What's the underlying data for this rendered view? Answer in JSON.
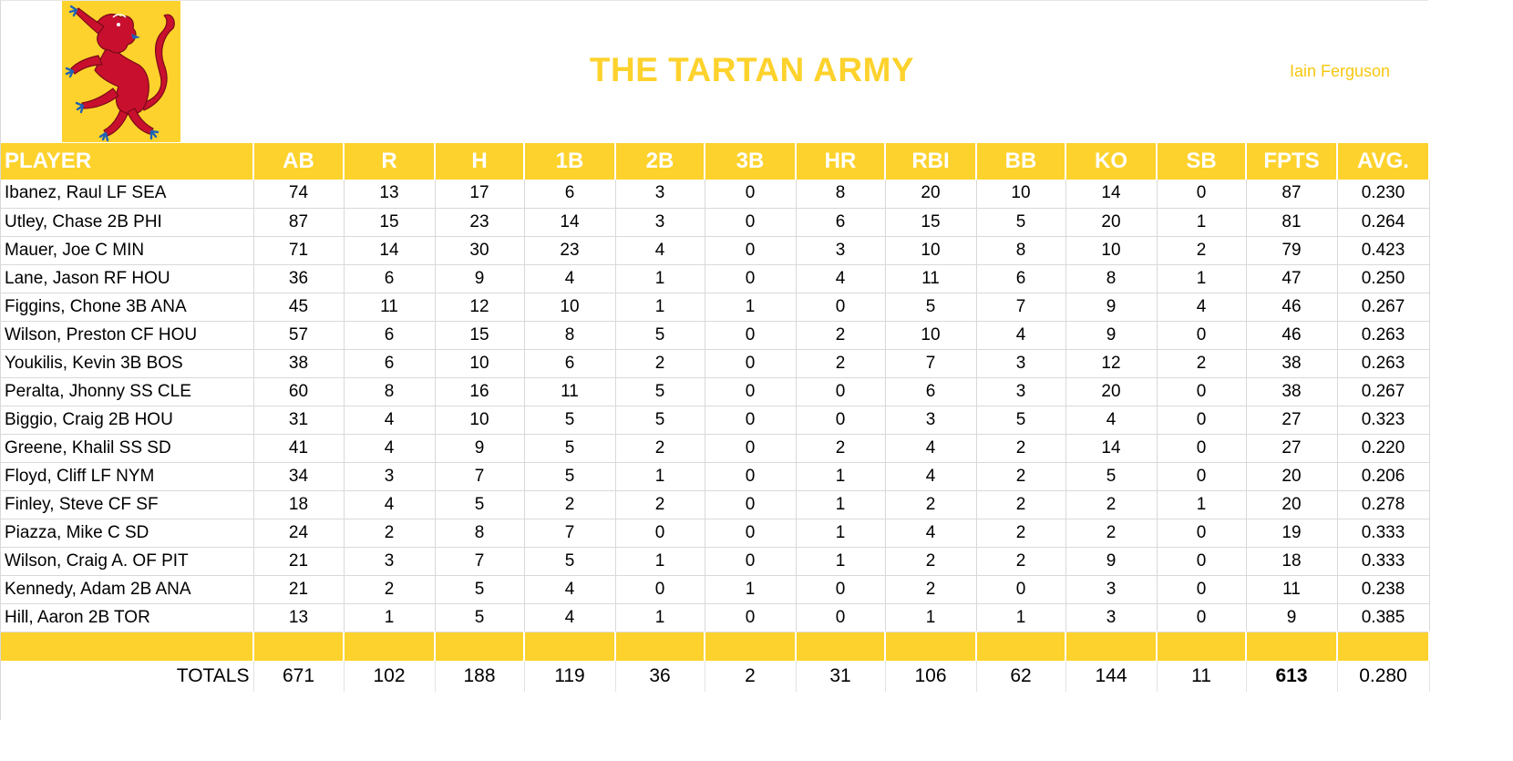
{
  "team": {
    "title": "THE TARTAN ARMY",
    "owner": "Iain Ferguson",
    "logo_icon": "rampant-lion-icon",
    "colors": {
      "accent": "#fdd22c",
      "lion": "#c8102e",
      "claws": "#1f63b5"
    }
  },
  "table": {
    "headers": [
      "PLAYER",
      "AB",
      "R",
      "H",
      "1B",
      "2B",
      "3B",
      "HR",
      "RBI",
      "BB",
      "KO",
      "SB",
      "FPTS",
      "AVG."
    ],
    "rows": [
      [
        "Ibanez, Raul LF SEA",
        "74",
        "13",
        "17",
        "6",
        "3",
        "0",
        "8",
        "20",
        "10",
        "14",
        "0",
        "87",
        "0.230"
      ],
      [
        "Utley, Chase 2B PHI",
        "87",
        "15",
        "23",
        "14",
        "3",
        "0",
        "6",
        "15",
        "5",
        "20",
        "1",
        "81",
        "0.264"
      ],
      [
        "Mauer, Joe C MIN",
        "71",
        "14",
        "30",
        "23",
        "4",
        "0",
        "3",
        "10",
        "8",
        "10",
        "2",
        "79",
        "0.423"
      ],
      [
        "Lane, Jason RF HOU",
        "36",
        "6",
        "9",
        "4",
        "1",
        "0",
        "4",
        "11",
        "6",
        "8",
        "1",
        "47",
        "0.250"
      ],
      [
        "Figgins, Chone 3B ANA",
        "45",
        "11",
        "12",
        "10",
        "1",
        "1",
        "0",
        "5",
        "7",
        "9",
        "4",
        "46",
        "0.267"
      ],
      [
        "Wilson, Preston CF HOU",
        "57",
        "6",
        "15",
        "8",
        "5",
        "0",
        "2",
        "10",
        "4",
        "9",
        "0",
        "46",
        "0.263"
      ],
      [
        "Youkilis, Kevin 3B BOS",
        "38",
        "6",
        "10",
        "6",
        "2",
        "0",
        "2",
        "7",
        "3",
        "12",
        "2",
        "38",
        "0.263"
      ],
      [
        "Peralta, Jhonny SS CLE",
        "60",
        "8",
        "16",
        "11",
        "5",
        "0",
        "0",
        "6",
        "3",
        "20",
        "0",
        "38",
        "0.267"
      ],
      [
        "Biggio, Craig 2B HOU",
        "31",
        "4",
        "10",
        "5",
        "5",
        "0",
        "0",
        "3",
        "5",
        "4",
        "0",
        "27",
        "0.323"
      ],
      [
        "Greene, Khalil SS SD",
        "41",
        "4",
        "9",
        "5",
        "2",
        "0",
        "2",
        "4",
        "2",
        "14",
        "0",
        "27",
        "0.220"
      ],
      [
        "Floyd, Cliff LF NYM",
        "34",
        "3",
        "7",
        "5",
        "1",
        "0",
        "1",
        "4",
        "2",
        "5",
        "0",
        "20",
        "0.206"
      ],
      [
        "Finley, Steve CF SF",
        "18",
        "4",
        "5",
        "2",
        "2",
        "0",
        "1",
        "2",
        "2",
        "2",
        "1",
        "20",
        "0.278"
      ],
      [
        "Piazza, Mike C SD",
        "24",
        "2",
        "8",
        "7",
        "0",
        "0",
        "1",
        "4",
        "2",
        "2",
        "0",
        "19",
        "0.333"
      ],
      [
        "Wilson, Craig A. OF PIT",
        "21",
        "3",
        "7",
        "5",
        "1",
        "0",
        "1",
        "2",
        "2",
        "9",
        "0",
        "18",
        "0.333"
      ],
      [
        "Kennedy, Adam 2B ANA",
        "21",
        "2",
        "5",
        "4",
        "0",
        "1",
        "0",
        "2",
        "0",
        "3",
        "0",
        "11",
        "0.238"
      ],
      [
        "Hill, Aaron 2B TOR",
        "13",
        "1",
        "5",
        "4",
        "1",
        "0",
        "0",
        "1",
        "1",
        "3",
        "0",
        "9",
        "0.385"
      ]
    ],
    "totals": [
      "TOTALS",
      "671",
      "102",
      "188",
      "119",
      "36",
      "2",
      "31",
      "106",
      "62",
      "144",
      "11",
      "613",
      "0.280"
    ]
  }
}
